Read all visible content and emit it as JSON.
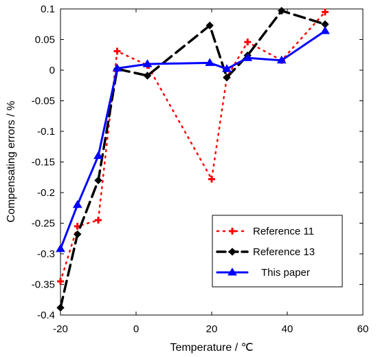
{
  "chart_data": {
    "type": "line",
    "xlabel": "Temperature / ℃",
    "ylabel": "Compensating errors / %",
    "xlim": [
      -20,
      60
    ],
    "ylim": [
      -0.4,
      0.1
    ],
    "xticks": [
      "-20",
      "0",
      "20",
      "40",
      "60"
    ],
    "xtick_values": [
      -20,
      0,
      20,
      40,
      60
    ],
    "yticks": [
      "0.1",
      "0.05",
      "0",
      "-0.05",
      "-0.1",
      "-0.15",
      "-0.2",
      "-0.25",
      "-0.3",
      "-0.35",
      "-0.4"
    ],
    "ytick_values": [
      0.1,
      0.05,
      0,
      -0.05,
      -0.1,
      -0.15,
      -0.2,
      -0.25,
      -0.3,
      -0.35,
      -0.4
    ],
    "grid": false,
    "legend_position": "bottom-right",
    "series": [
      {
        "name": "Reference  11",
        "color": "#ff0000",
        "style": "dotted",
        "marker": "plus",
        "x": [
          -20,
          -15.5,
          -10,
          -5,
          3,
          20,
          24,
          29.5,
          38.5,
          50
        ],
        "y": [
          -0.345,
          -0.255,
          -0.245,
          0.031,
          0.008,
          -0.178,
          -0.012,
          0.046,
          0.016,
          0.095
        ]
      },
      {
        "name": "Reference 13",
        "color": "#000000",
        "style": "dashed",
        "marker": "diamond",
        "x": [
          -20,
          -15.5,
          -10,
          -5,
          3,
          19.5,
          24,
          29.5,
          38.5,
          50
        ],
        "y": [
          -0.388,
          -0.268,
          -0.18,
          0.002,
          -0.009,
          0.073,
          -0.012,
          0.024,
          0.097,
          0.075
        ]
      },
      {
        "name": "This paper",
        "color": "#0000ff",
        "style": "solid",
        "marker": "triangle",
        "x": [
          -20,
          -15.5,
          -10,
          -5,
          3,
          19.5,
          24,
          29.5,
          38.5,
          50
        ],
        "y": [
          -0.292,
          -0.22,
          -0.14,
          0.003,
          0.01,
          0.012,
          0.002,
          0.02,
          0.016,
          0.064
        ]
      }
    ]
  }
}
